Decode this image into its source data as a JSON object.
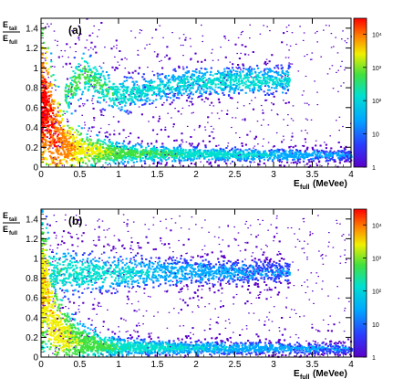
{
  "chart_data": [
    {
      "type": "heatmap",
      "panel_label": "(a)",
      "ylabel_main": "E",
      "ylabel_main_sub": "tail",
      "ylabel_den": "E",
      "ylabel_den_sub": "full",
      "xlabel_main": "E",
      "xlabel_sub": "full",
      "xlabel_unit": "(MeVee)",
      "xlim": [
        0,
        4
      ],
      "ylim": [
        0,
        1.5
      ],
      "x_ticks": [
        0,
        0.5,
        1,
        1.5,
        2,
        2.5,
        3,
        3.5,
        4
      ],
      "x_tick_labels": [
        "0",
        "0.5",
        "1",
        "1.5",
        "2",
        "2.5",
        "3",
        "3.5",
        "4"
      ],
      "y_ticks": [
        0,
        0.2,
        0.4,
        0.6,
        0.8,
        1,
        1.2,
        1.4
      ],
      "y_tick_labels": [
        "0",
        "0.2",
        "0.4",
        "0.6",
        "0.8",
        "1",
        "1.2",
        "1.4"
      ],
      "z_scale": "log",
      "zlim": [
        1,
        30000
      ],
      "z_ticks": [
        1,
        10,
        100,
        1000,
        10000
      ],
      "z_tick_labels": [
        "1",
        "10",
        "10²",
        "10³",
        "10⁴"
      ],
      "bands": [
        {
          "x": [
            0.05,
            0.15,
            0.3,
            0.5,
            1.0,
            2.0,
            3.0,
            4.0
          ],
          "y": [
            0.6,
            0.35,
            0.22,
            0.17,
            0.14,
            0.13,
            0.12,
            0.12
          ],
          "peak_counts": [
            20000,
            15000,
            6000,
            2000,
            500,
            150,
            60,
            20
          ]
        },
        {
          "x": [
            0.3,
            0.55,
            0.75,
            1.0,
            1.5,
            2.0,
            2.5,
            3.0
          ],
          "y": [
            0.72,
            0.95,
            0.82,
            0.72,
            0.8,
            0.86,
            0.87,
            0.87
          ],
          "peak_counts": [
            300,
            400,
            300,
            150,
            80,
            100,
            120,
            100
          ]
        }
      ]
    },
    {
      "type": "heatmap",
      "panel_label": "(b)",
      "ylabel_main": "E",
      "ylabel_main_sub": "tail",
      "ylabel_den": "E",
      "ylabel_den_sub": "full",
      "xlabel_main": "E",
      "xlabel_sub": "full",
      "xlabel_unit": "(MeVee)",
      "xlim": [
        0,
        4
      ],
      "ylim": [
        0,
        1.5
      ],
      "x_ticks": [
        0,
        0.5,
        1,
        1.5,
        2,
        2.5,
        3,
        3.5,
        4
      ],
      "x_tick_labels": [
        "0",
        "0.5",
        "1",
        "1.5",
        "2",
        "2.5",
        "3",
        "3.5",
        "4"
      ],
      "y_ticks": [
        0,
        0.2,
        0.4,
        0.6,
        0.8,
        1,
        1.2,
        1.4
      ],
      "y_tick_labels": [
        "0",
        "0.2",
        "0.4",
        "0.6",
        "0.8",
        "1",
        "1.2",
        "1.4"
      ],
      "z_scale": "log",
      "zlim": [
        1,
        30000
      ],
      "z_ticks": [
        1,
        10,
        100,
        1000,
        10000
      ],
      "z_tick_labels": [
        "1",
        "10",
        "10²",
        "10³",
        "10⁴"
      ],
      "bands": [
        {
          "x": [
            0.05,
            0.15,
            0.3,
            0.5,
            1.0,
            2.0,
            3.0,
            4.0
          ],
          "y": [
            0.7,
            0.35,
            0.2,
            0.14,
            0.1,
            0.09,
            0.09,
            0.08
          ],
          "peak_counts": [
            3000,
            2500,
            1500,
            700,
            200,
            80,
            40,
            15
          ]
        },
        {
          "x": [
            0.1,
            0.3,
            0.6,
            1.0,
            1.5,
            2.0,
            2.5,
            3.0
          ],
          "y": [
            0.87,
            0.86,
            0.85,
            0.85,
            0.86,
            0.86,
            0.86,
            0.86
          ],
          "peak_counts": [
            200,
            200,
            150,
            100,
            60,
            40,
            30,
            20
          ]
        }
      ]
    }
  ]
}
